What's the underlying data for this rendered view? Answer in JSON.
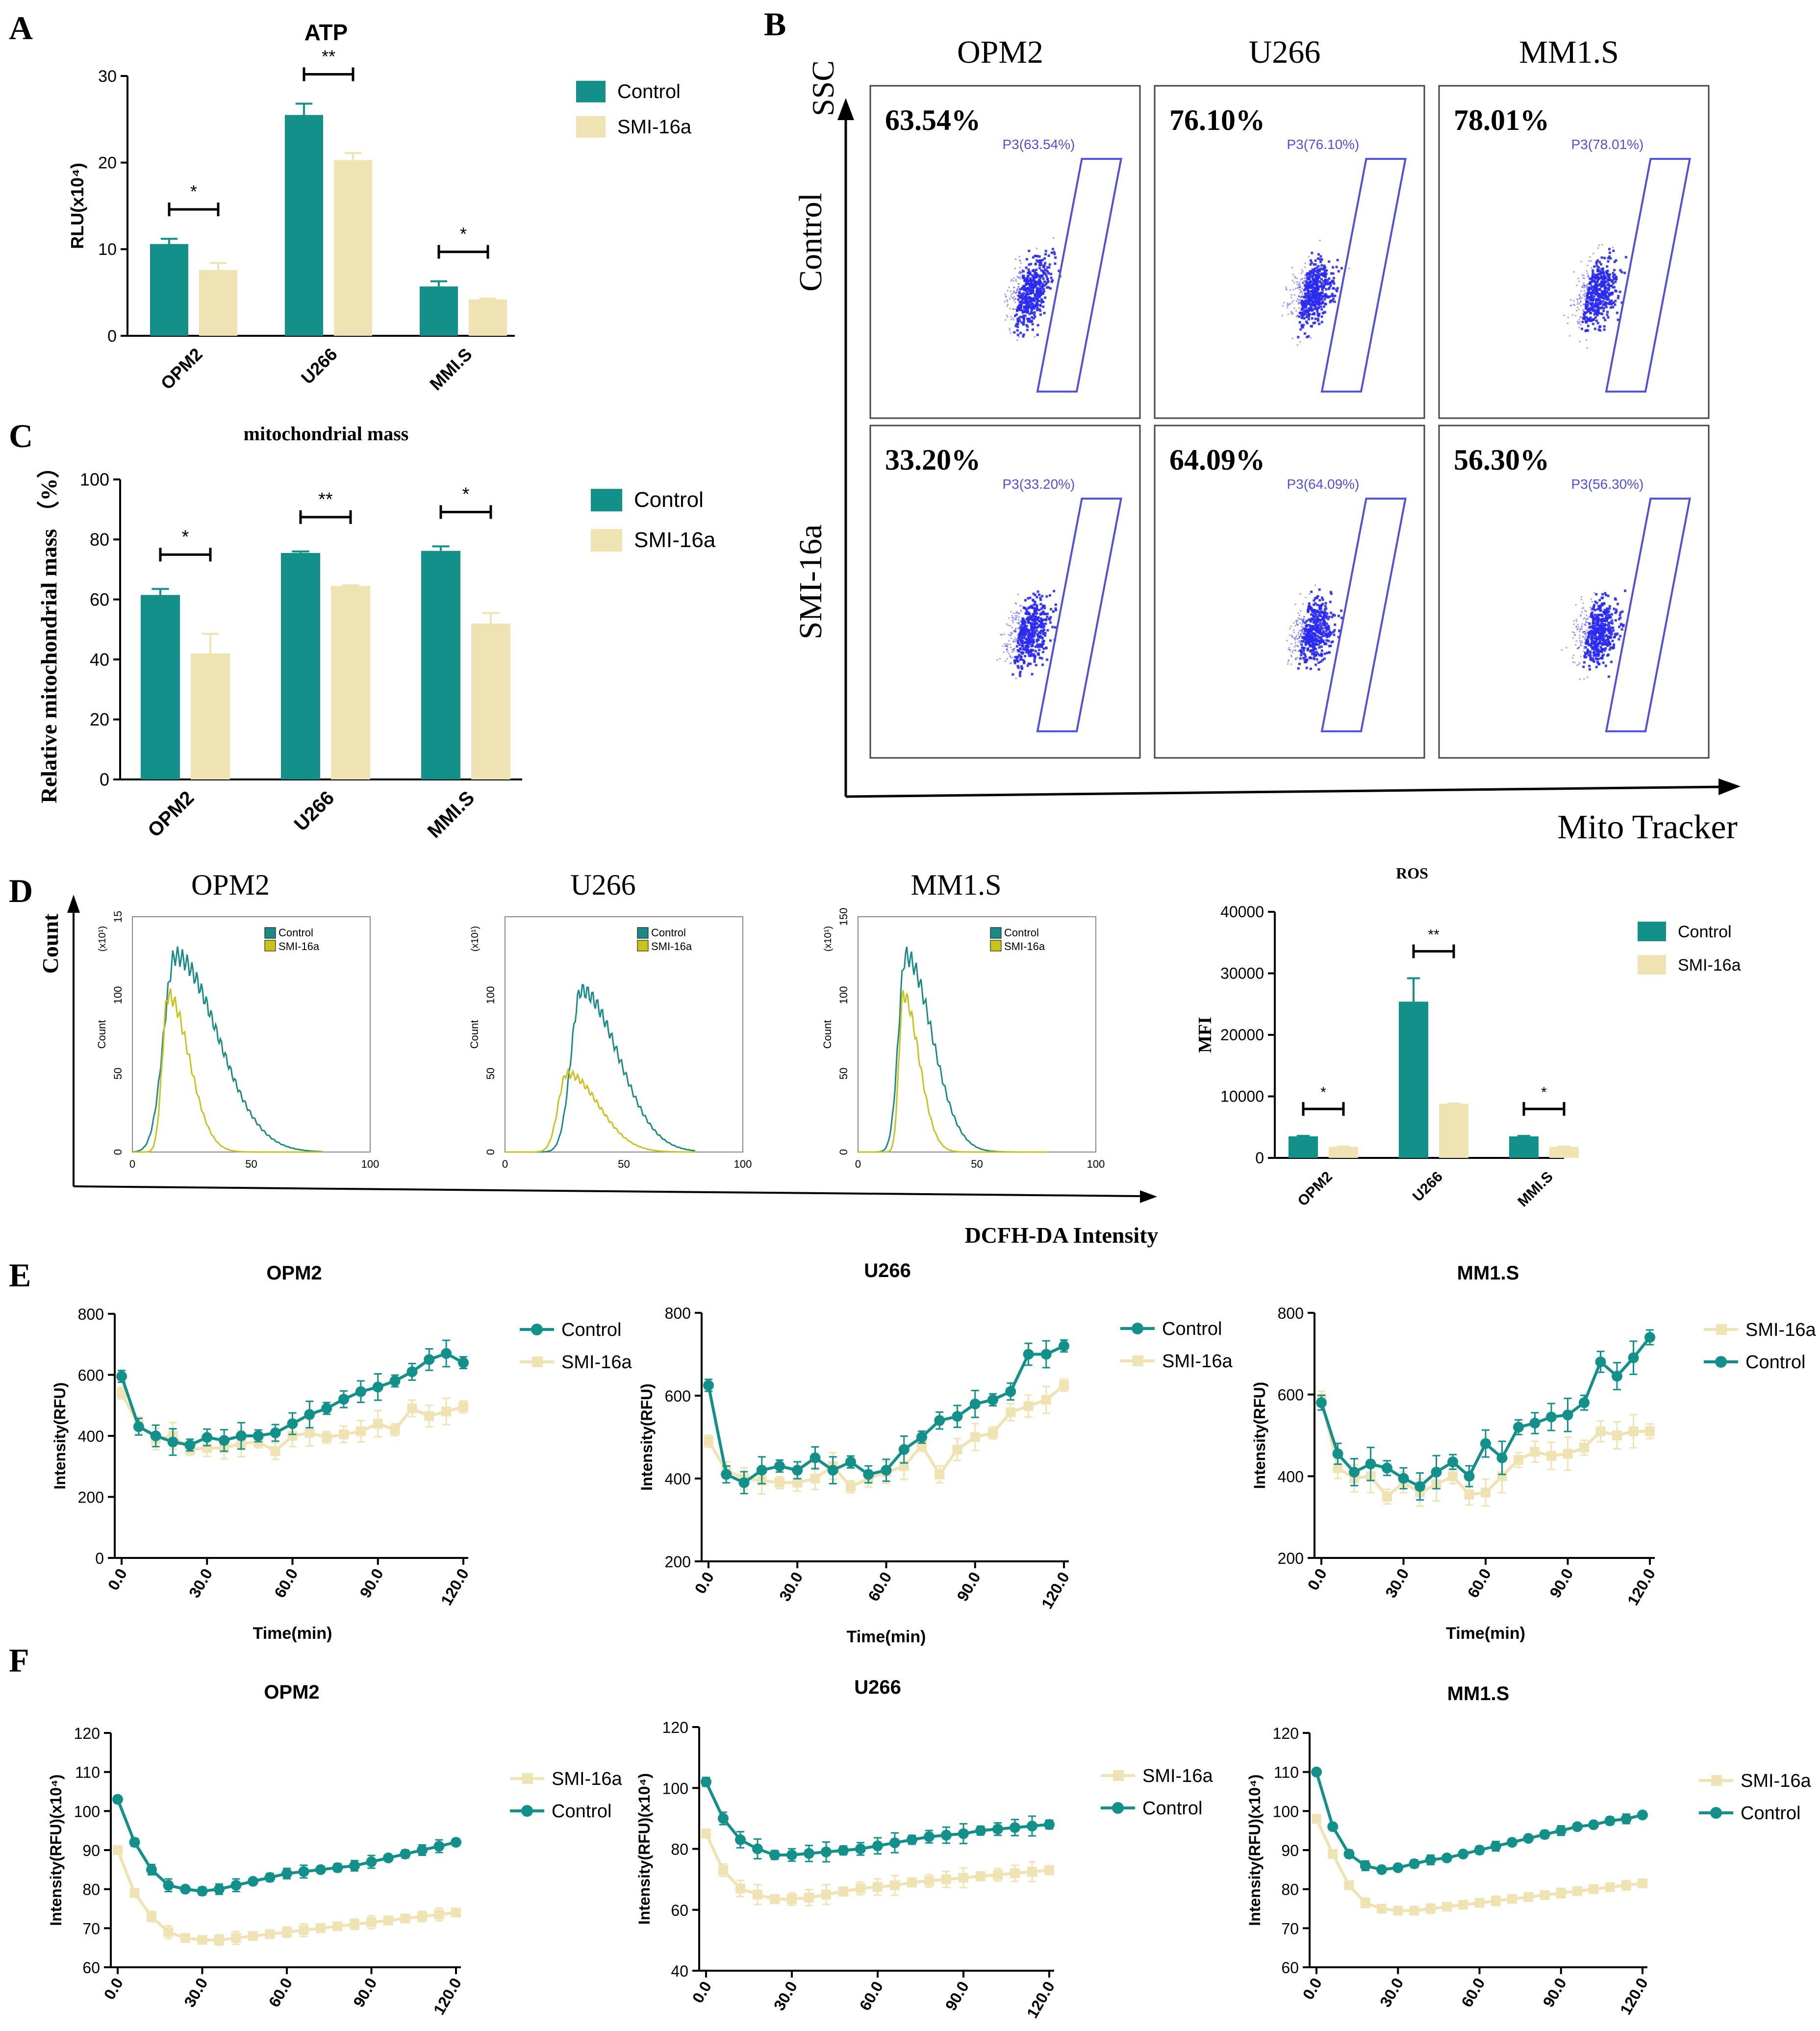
{
  "colors": {
    "control": "#14908a",
    "smi": "#f0e3b3",
    "gate": "#5050dc",
    "dots": "#2a2af0",
    "flow_control": "#1a8a88",
    "flow_smi": "#c9c21c"
  },
  "chart_data": [
    {
      "id": "A",
      "panel_label": "A",
      "type": "bar",
      "title": "ATP",
      "ylabel": "RLU(x10⁴)",
      "ylim": [
        0,
        30
      ],
      "yticks": [
        "0",
        "10",
        "20",
        "30"
      ],
      "categories": [
        "OPM2",
        "U266",
        "MMI.S"
      ],
      "series": [
        {
          "name": "Control",
          "values": [
            10.6,
            25.5,
            5.7
          ],
          "errors": [
            0.6,
            1.3,
            0.6
          ]
        },
        {
          "name": "SMI-16a",
          "values": [
            7.6,
            20.3,
            4.2
          ],
          "errors": [
            0.8,
            0.8,
            0.1
          ]
        }
      ],
      "significance": [
        "*",
        "**",
        "*"
      ]
    },
    {
      "id": "C",
      "panel_label": "C",
      "type": "bar",
      "title": "mitochondrial mass",
      "ylabel": "Relative mitochondrial mass （%）",
      "ylim": [
        0,
        100
      ],
      "yticks": [
        "0",
        "20",
        "40",
        "60",
        "80",
        "100"
      ],
      "categories": [
        "OPM2",
        "U266",
        "MMI.S"
      ],
      "series": [
        {
          "name": "Control",
          "values": [
            61.5,
            75.5,
            76.2
          ],
          "errors": [
            2.0,
            0.5,
            1.5
          ]
        },
        {
          "name": "SMI-16a",
          "values": [
            42.0,
            64.5,
            52.0
          ],
          "errors": [
            6.5,
            0.2,
            3.5
          ]
        }
      ],
      "significance": [
        "*",
        "**",
        "*"
      ]
    },
    {
      "id": "D_ros",
      "type": "bar",
      "title": "ROS",
      "ylabel": "MFI",
      "ylim": [
        0,
        40000
      ],
      "yticks": [
        "0",
        "10000",
        "20000",
        "30000",
        "40000"
      ],
      "categories": [
        "OPM2",
        "U266",
        "MMI.S"
      ],
      "series": [
        {
          "name": "Control",
          "values": [
            3500,
            25400,
            3500
          ],
          "errors": [
            80,
            3800,
            80
          ]
        },
        {
          "name": "SMI-16a",
          "values": [
            1800,
            8800,
            1800
          ],
          "errors": [
            50,
            50,
            50
          ]
        }
      ],
      "significance": [
        "*",
        "**",
        "*"
      ]
    },
    {
      "id": "E",
      "type": "line",
      "xlabel": "Time(min)",
      "xlim": [
        0,
        120
      ],
      "xticks": [
        "0.0",
        "30.0",
        "60.0",
        "90.0",
        "120.0"
      ],
      "x": [
        0,
        6,
        12,
        18,
        24,
        30,
        36,
        42,
        48,
        54,
        60,
        66,
        72,
        78,
        84,
        90,
        96,
        102,
        108,
        114,
        120
      ],
      "plots": [
        {
          "title": "OPM2",
          "ylabel": "Intensity(RFU)",
          "ylim": [
            0,
            800
          ],
          "yticks": [
            "0",
            "200",
            "400",
            "600",
            "800"
          ],
          "legend_order": [
            "Control",
            "SMI-16a"
          ],
          "series": [
            {
              "name": "Control",
              "values": [
                595,
                430,
                400,
                380,
                370,
                395,
                385,
                400,
                400,
                410,
                440,
                470,
                490,
                520,
                545,
                560,
                580,
                610,
                650,
                670,
                640
              ]
            },
            {
              "name": "SMI-16a",
              "values": [
                540,
                435,
                390,
                400,
                355,
                360,
                360,
                375,
                380,
                350,
                400,
                410,
                395,
                405,
                415,
                440,
                420,
                490,
                465,
                480,
                495
              ]
            }
          ]
        },
        {
          "title": "U266",
          "ylabel": "Intensity(RFU)",
          "ylim": [
            200,
            800
          ],
          "yticks": [
            "200",
            "400",
            "600",
            "800"
          ],
          "legend_order": [
            "Control",
            "SMI-16a"
          ],
          "series": [
            {
              "name": "Control",
              "values": [
                625,
                410,
                390,
                420,
                430,
                420,
                450,
                420,
                440,
                410,
                420,
                470,
                500,
                540,
                550,
                580,
                590,
                610,
                700,
                700,
                720
              ]
            },
            {
              "name": "SMI-16a",
              "values": [
                490,
                420,
                400,
                395,
                390,
                390,
                400,
                430,
                380,
                400,
                415,
                430,
                480,
                410,
                470,
                500,
                510,
                560,
                575,
                590,
                625
              ]
            }
          ]
        },
        {
          "title": "MM1.S",
          "ylabel": "Intensity(RFU)",
          "ylim": [
            200,
            800
          ],
          "yticks": [
            "200",
            "400",
            "600",
            "800"
          ],
          "legend_order": [
            "SMI-16a",
            "Control"
          ],
          "series": [
            {
              "name": "Control",
              "values": [
                580,
                455,
                410,
                430,
                420,
                395,
                375,
                410,
                435,
                400,
                480,
                445,
                520,
                530,
                545,
                550,
                580,
                680,
                645,
                690,
                740
              ]
            },
            {
              "name": "SMI-16a",
              "values": [
                590,
                420,
                395,
                400,
                350,
                385,
                360,
                380,
                400,
                355,
                360,
                400,
                440,
                460,
                450,
                455,
                470,
                510,
                500,
                510,
                510
              ]
            }
          ]
        }
      ]
    },
    {
      "id": "F",
      "type": "line",
      "xlim": [
        0,
        120
      ],
      "xticks": [
        "0.0",
        "30.0",
        "60.0",
        "90.0",
        "120.0"
      ],
      "x": [
        0,
        6,
        12,
        18,
        24,
        30,
        36,
        42,
        48,
        54,
        60,
        66,
        72,
        78,
        84,
        90,
        96,
        102,
        108,
        114,
        120
      ],
      "plots": [
        {
          "title": "OPM2",
          "ylabel": "Intensity(RFU)(x10⁴)",
          "ylim": [
            60,
            120
          ],
          "yticks": [
            "60",
            "70",
            "80",
            "90",
            "100",
            "110",
            "120"
          ],
          "legend_order": [
            "SMI-16a",
            "Control"
          ],
          "series": [
            {
              "name": "Control",
              "values": [
                103,
                92,
                85,
                81,
                80,
                79.5,
                80,
                81,
                82,
                83,
                84,
                84.5,
                85,
                85.5,
                86,
                87,
                88,
                89,
                90,
                91,
                92
              ]
            },
            {
              "name": "SMI-16a",
              "values": [
                90,
                79,
                73,
                69,
                67.5,
                67,
                67,
                67.5,
                68,
                68.5,
                69,
                69.5,
                70,
                70.5,
                71,
                71.5,
                72,
                72.5,
                73,
                73.5,
                74
              ]
            }
          ]
        },
        {
          "title": "U266",
          "ylabel": "Intensity(RFU)(x10⁴)",
          "ylim": [
            40,
            120
          ],
          "yticks": [
            "40",
            "60",
            "80",
            "100",
            "120"
          ],
          "legend_order": [
            "SMI-16a",
            "Control"
          ],
          "series": [
            {
              "name": "Control",
              "values": [
                102,
                90,
                83,
                80,
                78,
                78,
                78.5,
                79,
                79.5,
                80,
                81,
                82,
                83,
                84,
                84.5,
                85,
                86,
                86.5,
                87,
                87.5,
                88
              ]
            },
            {
              "name": "SMI-16a",
              "values": [
                85,
                73,
                67,
                65,
                63.5,
                63.5,
                64,
                65,
                66,
                67,
                67.5,
                68,
                69,
                69.5,
                70,
                70.5,
                71,
                71.5,
                72,
                72.5,
                73
              ]
            }
          ]
        },
        {
          "title": "MM1.S",
          "ylabel": "Intensity(RFU)(x10⁴)",
          "ylim": [
            60,
            120
          ],
          "yticks": [
            "60",
            "70",
            "80",
            "90",
            "100",
            "110",
            "120"
          ],
          "legend_order": [
            "SMI-16a",
            "Control"
          ],
          "series": [
            {
              "name": "Control",
              "values": [
                110,
                96,
                89,
                86,
                85,
                85.5,
                86.5,
                87.5,
                88,
                89,
                90,
                91,
                92,
                93,
                94,
                95,
                96,
                96.5,
                97.5,
                98,
                99
              ]
            },
            {
              "name": "SMI-16a",
              "values": [
                98,
                89,
                81,
                76.5,
                75,
                74.5,
                74.5,
                75,
                75.5,
                76,
                76.5,
                77,
                77.5,
                78,
                78.5,
                79,
                79.5,
                80,
                80.5,
                81,
                81.5
              ]
            }
          ]
        }
      ]
    }
  ],
  "panel_b": {
    "panel_label": "B",
    "y_axis_label": "SSC",
    "x_axis_label": "Mito Tracker",
    "columns": [
      "OPM2",
      "U266",
      "MM1.S"
    ],
    "rows": [
      "Control",
      "SMI-16a"
    ],
    "percentages": [
      [
        "63.54%",
        "76.10%",
        "78.01%"
      ],
      [
        "33.20%",
        "64.09%",
        "56.30%"
      ]
    ],
    "gate_labels": [
      [
        "P3(63.54%)",
        "P3(76.10%)",
        "P3(78.01%)"
      ],
      [
        "P3(33.20%)",
        "P3(64.09%)",
        "P3(56.30%)"
      ]
    ]
  },
  "panel_d": {
    "panel_label": "D",
    "y_axis_label": "Count",
    "x_axis_label": "DCFH-DA Intensity",
    "titles": [
      "OPM2",
      "U266",
      "MM1.S"
    ],
    "inner_ylabel": "Count",
    "multiplier": [
      "(x10¹)",
      "(x10¹)",
      "(x10¹)"
    ],
    "yticks": [
      [
        "0",
        "50",
        "100",
        "15"
      ],
      [
        "0",
        "50",
        "100"
      ],
      [
        "0",
        "50",
        "100",
        "150"
      ]
    ],
    "xticks": [
      "0",
      "50",
      "100"
    ],
    "legend": [
      "Control",
      "SMI-16a"
    ],
    "peaks": [
      {
        "control": {
          "peak": 18,
          "height": 125,
          "width": 8
        },
        "smi": {
          "peak": 15,
          "height": 100,
          "width": 4
        }
      },
      {
        "control": {
          "peak": 32,
          "height": 103,
          "width": 7
        },
        "smi": {
          "peak": 26,
          "height": 50,
          "width": 6
        }
      },
      {
        "control": {
          "peak": 20,
          "height": 125,
          "width": 5
        },
        "smi": {
          "peak": 19,
          "height": 100,
          "width": 3
        }
      }
    ]
  },
  "panel_labels": {
    "E": "E",
    "F": "F"
  },
  "legend_labels": {
    "control": "Control",
    "smi": "SMI-16a"
  }
}
